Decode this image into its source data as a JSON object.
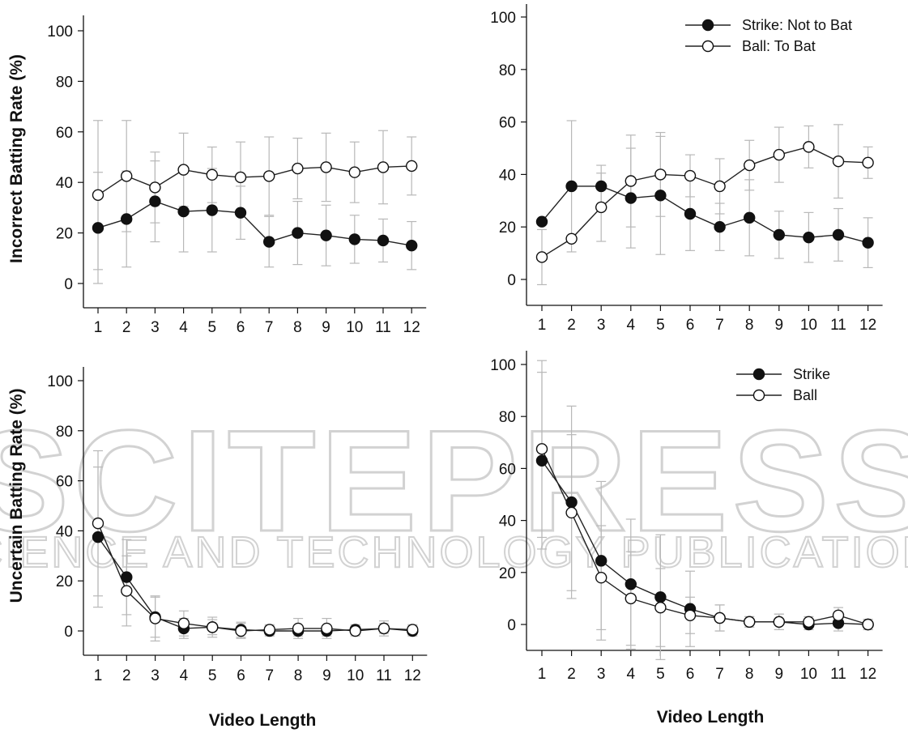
{
  "figure": {
    "xlabel": "Video Length",
    "top_ylabel": "Incorrect Batting Rate (%)",
    "bottom_ylabel": "Uncertain Batting Rate (%)",
    "watermark": {
      "main": "SCITEPRESS",
      "sub": "SCIENCE AND TECHNOLOGY PUBLICATIONS"
    }
  },
  "chart_data": [
    {
      "type": "line",
      "id": "top-left",
      "xlabel": "",
      "ylabel": "Incorrect Batting Rate (%)",
      "x": [
        1,
        2,
        3,
        4,
        5,
        6,
        7,
        8,
        9,
        10,
        11,
        12
      ],
      "xticks": [
        "1",
        "2",
        "3",
        "4",
        "5",
        "6",
        "7",
        "8",
        "9",
        "10",
        "11",
        "12"
      ],
      "yticks": [
        0,
        20,
        40,
        60,
        80,
        100
      ],
      "ylim": [
        -10,
        105
      ],
      "legend": [],
      "series": [
        {
          "key": "strike",
          "marker": "filled",
          "values": [
            22,
            25.5,
            32.5,
            28.5,
            29,
            28,
            16.5,
            20,
            19,
            17.5,
            17,
            15
          ],
          "err": [
            22,
            19,
            16,
            16,
            16.5,
            10.5,
            10,
            12.5,
            12,
            9.5,
            8.5,
            9.5
          ]
        },
        {
          "key": "ball",
          "marker": "open",
          "values": [
            35,
            42.5,
            38,
            45,
            43,
            42,
            42.5,
            45.5,
            46,
            44,
            46,
            46.5
          ],
          "err": [
            29.5,
            22,
            14,
            14.5,
            11,
            14,
            15.5,
            12,
            13.5,
            12,
            14.5,
            11.5
          ]
        }
      ]
    },
    {
      "type": "line",
      "id": "top-right",
      "xlabel": "",
      "ylabel": "",
      "x": [
        1,
        2,
        3,
        4,
        5,
        6,
        7,
        8,
        9,
        10,
        11,
        12
      ],
      "xticks": [
        "1",
        "2",
        "3",
        "4",
        "5",
        "6",
        "7",
        "8",
        "9",
        "10",
        "11",
        "12"
      ],
      "yticks": [
        0,
        20,
        40,
        60,
        80,
        100
      ],
      "ylim": [
        -10,
        105
      ],
      "legend": [
        "Strike: Not to Bat",
        "Ball: To Bat"
      ],
      "legend_position": "top-right",
      "series": [
        {
          "key": "strike",
          "name": "Strike: Not to Bat",
          "marker": "filled",
          "values": [
            22,
            35.5,
            35.5,
            31,
            32,
            25,
            20,
            23.5,
            17,
            16,
            17,
            14
          ],
          "err": [
            0,
            25,
            8,
            19,
            22.5,
            14,
            9,
            14.5,
            9,
            9.5,
            10,
            9.5
          ]
        },
        {
          "key": "ball",
          "name": "Ball: To Bat",
          "marker": "open",
          "values": [
            8.5,
            15.5,
            27.5,
            37.5,
            40,
            39.5,
            35.5,
            43.5,
            47.5,
            50.5,
            45,
            44.5
          ],
          "err": [
            10.5,
            0,
            13,
            17.5,
            16,
            8,
            10.5,
            9.5,
            10.5,
            8,
            14,
            6
          ]
        }
      ]
    },
    {
      "type": "line",
      "id": "bottom-left",
      "xlabel": "Video Length",
      "ylabel": "Uncertain Batting Rate (%)",
      "x": [
        1,
        2,
        3,
        4,
        5,
        6,
        7,
        8,
        9,
        10,
        11,
        12
      ],
      "xticks": [
        "1",
        "2",
        "3",
        "4",
        "5",
        "6",
        "7",
        "8",
        "9",
        "10",
        "11",
        "12"
      ],
      "yticks": [
        0,
        20,
        40,
        60,
        80,
        100
      ],
      "ylim": [
        -10,
        105
      ],
      "legend": [],
      "series": [
        {
          "key": "strike",
          "marker": "filled",
          "values": [
            37.5,
            21.5,
            5.5,
            1,
            1.5,
            0.5,
            0,
            0,
            0,
            0.5,
            1,
            0
          ],
          "err": [
            28,
            15,
            8,
            4,
            3,
            3,
            2,
            2,
            2,
            2,
            2,
            2
          ]
        },
        {
          "key": "ball",
          "marker": "open",
          "values": [
            43,
            16,
            5,
            3,
            1.5,
            0,
            0.5,
            1,
            1,
            0,
            1,
            0.5
          ],
          "err": [
            29,
            14,
            9,
            5,
            4,
            3,
            2,
            4,
            4,
            2,
            3,
            2
          ]
        }
      ]
    },
    {
      "type": "line",
      "id": "bottom-right",
      "xlabel": "Video Length",
      "ylabel": "",
      "x": [
        1,
        2,
        3,
        4,
        5,
        6,
        7,
        8,
        9,
        10,
        11,
        12
      ],
      "xticks": [
        "1",
        "2",
        "3",
        "4",
        "5",
        "6",
        "7",
        "8",
        "9",
        "10",
        "11",
        "12"
      ],
      "yticks": [
        0,
        20,
        40,
        60,
        80,
        100
      ],
      "ylim": [
        -10,
        105
      ],
      "legend": [
        "Strike",
        "Ball"
      ],
      "legend_position": "top-right",
      "series": [
        {
          "key": "strike",
          "name": "Strike",
          "marker": "filled",
          "values": [
            63,
            47,
            24.5,
            15.5,
            10.5,
            6,
            2.5,
            1,
            1,
            0,
            0.5,
            0
          ],
          "err": [
            34,
            37,
            30.5,
            25,
            24,
            14.5,
            5,
            2,
            3,
            2,
            3,
            2
          ]
        },
        {
          "key": "ball",
          "name": "Ball",
          "marker": "open",
          "values": [
            67.5,
            43,
            18,
            10,
            6.5,
            3.5,
            2.5,
            1,
            1,
            1,
            3.5,
            0
          ],
          "err": [
            34,
            30,
            20,
            18,
            15,
            7,
            5,
            2,
            3,
            2,
            3,
            2
          ]
        }
      ]
    }
  ]
}
